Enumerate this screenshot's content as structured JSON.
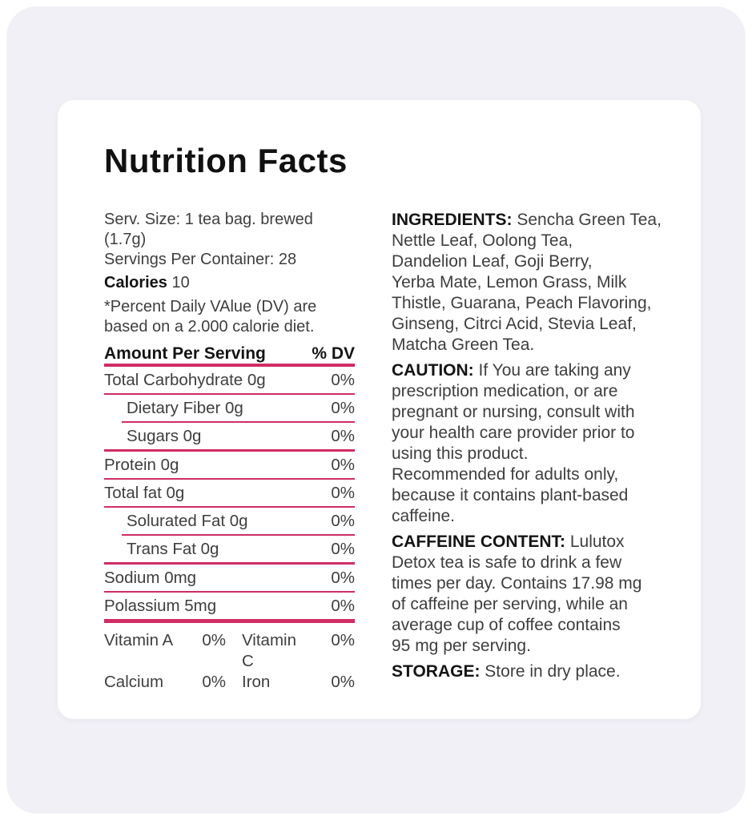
{
  "label": {
    "title": "Nutrition Facts"
  },
  "serving_info": {
    "line1": "Serv. Size: 1 tea bag. brewed (1.7g)",
    "line2": "Servings Per Container: 28",
    "calories_label": "Calories",
    "calories_value": "10",
    "dv_note": "*Percent Daily VAlue (DV) are\nbased on a 2.000 calorie diet."
  },
  "table": {
    "header": {
      "amount": "Amount Per Serving",
      "dv": "% DV"
    },
    "rows": [
      {
        "label": "Total Carbohydrate 0g",
        "dv": "0%"
      },
      {
        "label": "Dietary Fiber 0g",
        "dv": "0%"
      },
      {
        "label": "Sugars 0g",
        "dv": "0%"
      },
      {
        "label": "Protein 0g",
        "dv": "0%"
      },
      {
        "label": "Total fat 0g",
        "dv": "0%"
      },
      {
        "label": "Solurated Fat 0g",
        "dv": "0%"
      },
      {
        "label": "Trans Fat 0g",
        "dv": "0%"
      },
      {
        "label": "Sodium 0mg",
        "dv": "0%"
      },
      {
        "label": "Polassium 5mg",
        "dv": "0%"
      }
    ],
    "micronutrients": [
      {
        "label1": "Vitamin A",
        "value1": "0%",
        "label2": "Vitamin C",
        "value2": "0%"
      },
      {
        "label1": "Calcium",
        "value1": "0%",
        "label2": "Iron",
        "value2": "0%"
      }
    ]
  },
  "sections": {
    "ingredients": {
      "heading": "INGREDIENTS:",
      "text": " Sencha Green Tea,\nNettle Leaf, Oolong Tea,\nDandelion Leaf, Goji Berry,\nYerba Mate, Lemon Grass, Milk\nThistle, Guarana, Peach Flavoring,\nGinseng, Citrci Acid, Stevia Leaf,\nMatcha Green Tea."
    },
    "caution": {
      "heading": "CAUTION:",
      "text": " If You are taking any\nprescription medication, or are\npregnant or nursing, consult with\nyour health care provider prior to\nusing this product.\nRecommended for adults only,\nbecause it contains plant-based\ncaffeine."
    },
    "caffeine": {
      "heading": "CAFFEINE CONTENT:",
      "text": " Lulutox\nDetox tea is safe to drink a few\ntimes per day. Contains 17.98 mg\nof caffeine per serving, while an\naverage cup of coffee contains\n95 mg per serving."
    },
    "storage": {
      "heading": "STORAGE:",
      "text": " Store in dry place."
    }
  },
  "colors": {
    "accent": "#cf2d63",
    "page_bg": "#f1f0f6",
    "card_bg": "#ffffff",
    "text": "#3e3e3e",
    "heading_text": "#141414"
  }
}
